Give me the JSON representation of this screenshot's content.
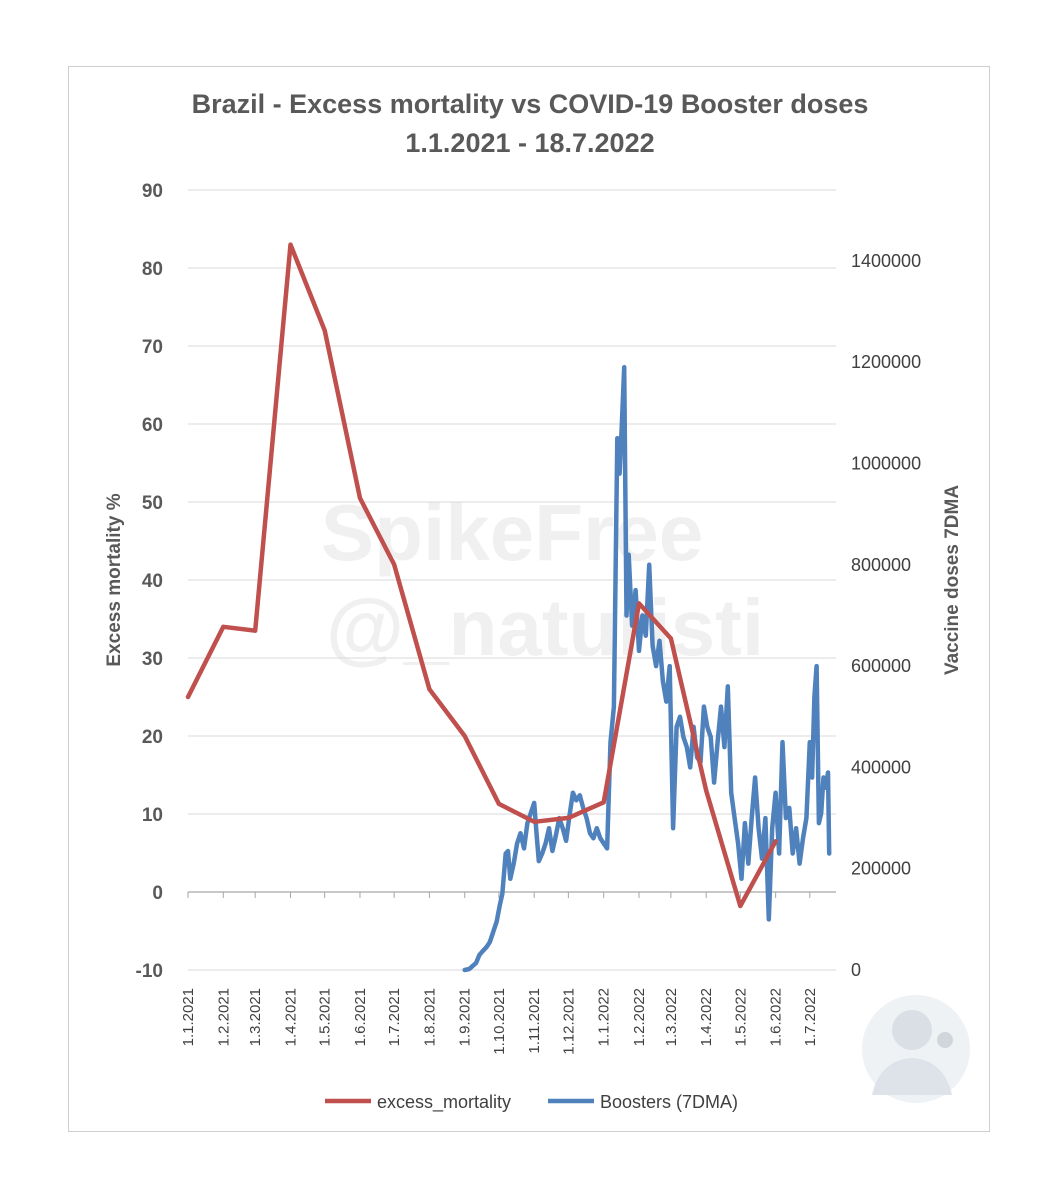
{
  "chart_data": {
    "type": "line",
    "title": "Brazil - Excess mortality vs COVID-19 Booster doses",
    "subtitle": "1.1.2021 - 18.7.2022",
    "ylabel": "Excess mortality %",
    "y2label": "Vaccine doses 7DMA",
    "ylim": [
      -10,
      90
    ],
    "y2lim": [
      0,
      1540000
    ],
    "y_ticks": [
      "-10",
      "0",
      "10",
      "20",
      "30",
      "40",
      "50",
      "60",
      "70",
      "80",
      "90"
    ],
    "y2_ticks": [
      "0",
      "200000",
      "400000",
      "600000",
      "800000",
      "1000000",
      "1200000",
      "1400000"
    ],
    "x_ticks": [
      "1.1.2021",
      "1.2.2021",
      "1.3.2021",
      "1.4.2021",
      "1.5.2021",
      "1.6.2021",
      "1.7.2021",
      "1.8.2021",
      "1.9.2021",
      "1.10.2021",
      "1.11.2021",
      "1.12.2021",
      "1.1.2022",
      "1.2.2022",
      "1.3.2022",
      "1.4.2022",
      "1.5.2022",
      "1.6.2022",
      "1.7.2022"
    ],
    "grid": true,
    "legend_position": "bottom",
    "series": [
      {
        "name": "excess_mortality",
        "axis": "left",
        "color": "#c0504d",
        "points": [
          [
            "2021-01-01",
            25
          ],
          [
            "2021-02-01",
            34
          ],
          [
            "2021-03-01",
            33.5
          ],
          [
            "2021-04-01",
            83
          ],
          [
            "2021-05-01",
            72
          ],
          [
            "2021-06-01",
            50.5
          ],
          [
            "2021-07-01",
            42
          ],
          [
            "2021-08-01",
            26
          ],
          [
            "2021-09-01",
            20
          ],
          [
            "2021-10-01",
            11.3
          ],
          [
            "2021-11-01",
            9
          ],
          [
            "2021-12-01",
            9.5
          ],
          [
            "2022-01-01",
            11.5
          ],
          [
            "2022-02-01",
            37
          ],
          [
            "2022-03-01",
            32.5
          ],
          [
            "2022-04-01",
            13
          ],
          [
            "2022-05-01",
            -1.8
          ],
          [
            "2022-06-01",
            6.5
          ]
        ]
      },
      {
        "name": "Boosters (7DMA)",
        "axis": "right",
        "color": "#4f81bd",
        "points": [
          [
            "2021-09-01",
            0
          ],
          [
            "2021-09-05",
            2000
          ],
          [
            "2021-09-08",
            8000
          ],
          [
            "2021-09-11",
            14000
          ],
          [
            "2021-09-14",
            30000
          ],
          [
            "2021-09-17",
            38000
          ],
          [
            "2021-09-20",
            45000
          ],
          [
            "2021-09-23",
            55000
          ],
          [
            "2021-09-26",
            75000
          ],
          [
            "2021-09-29",
            95000
          ],
          [
            "2021-10-02",
            130000
          ],
          [
            "2021-10-04",
            150000
          ],
          [
            "2021-10-07",
            230000
          ],
          [
            "2021-10-09",
            235000
          ],
          [
            "2021-10-11",
            180000
          ],
          [
            "2021-10-14",
            210000
          ],
          [
            "2021-10-17",
            250000
          ],
          [
            "2021-10-20",
            270000
          ],
          [
            "2021-10-23",
            240000
          ],
          [
            "2021-10-26",
            290000
          ],
          [
            "2021-10-29",
            310000
          ],
          [
            "2021-11-01",
            330000
          ],
          [
            "2021-11-03",
            270000
          ],
          [
            "2021-11-05",
            215000
          ],
          [
            "2021-11-08",
            230000
          ],
          [
            "2021-11-11",
            250000
          ],
          [
            "2021-11-14",
            280000
          ],
          [
            "2021-11-17",
            235000
          ],
          [
            "2021-11-20",
            265000
          ],
          [
            "2021-11-23",
            300000
          ],
          [
            "2021-11-26",
            280000
          ],
          [
            "2021-11-29",
            255000
          ],
          [
            "2021-12-02",
            305000
          ],
          [
            "2021-12-05",
            350000
          ],
          [
            "2021-12-08",
            335000
          ],
          [
            "2021-12-11",
            345000
          ],
          [
            "2021-12-14",
            320000
          ],
          [
            "2021-12-17",
            300000
          ],
          [
            "2021-12-20",
            270000
          ],
          [
            "2021-12-23",
            260000
          ],
          [
            "2021-12-26",
            280000
          ],
          [
            "2021-12-29",
            260000
          ],
          [
            "2022-01-01",
            250000
          ],
          [
            "2022-01-04",
            240000
          ],
          [
            "2022-01-07",
            450000
          ],
          [
            "2022-01-10",
            520000
          ],
          [
            "2022-01-13",
            1050000
          ],
          [
            "2022-01-15",
            980000
          ],
          [
            "2022-01-17",
            1080000
          ],
          [
            "2022-01-19",
            1190000
          ],
          [
            "2022-01-21",
            700000
          ],
          [
            "2022-01-23",
            820000
          ],
          [
            "2022-01-26",
            680000
          ],
          [
            "2022-01-29",
            750000
          ],
          [
            "2022-02-01",
            630000
          ],
          [
            "2022-02-04",
            700000
          ],
          [
            "2022-02-07",
            660000
          ],
          [
            "2022-02-10",
            800000
          ],
          [
            "2022-02-13",
            640000
          ],
          [
            "2022-02-16",
            600000
          ],
          [
            "2022-02-19",
            650000
          ],
          [
            "2022-02-22",
            570000
          ],
          [
            "2022-02-25",
            530000
          ],
          [
            "2022-02-28",
            600000
          ],
          [
            "2022-03-03",
            280000
          ],
          [
            "2022-03-06",
            480000
          ],
          [
            "2022-03-09",
            500000
          ],
          [
            "2022-03-12",
            460000
          ],
          [
            "2022-03-15",
            440000
          ],
          [
            "2022-03-18",
            400000
          ],
          [
            "2022-03-21",
            480000
          ],
          [
            "2022-03-24",
            420000
          ],
          [
            "2022-03-27",
            410000
          ],
          [
            "2022-03-30",
            520000
          ],
          [
            "2022-04-02",
            480000
          ],
          [
            "2022-04-05",
            460000
          ],
          [
            "2022-04-08",
            370000
          ],
          [
            "2022-04-11",
            450000
          ],
          [
            "2022-04-14",
            520000
          ],
          [
            "2022-04-17",
            440000
          ],
          [
            "2022-04-20",
            560000
          ],
          [
            "2022-04-23",
            350000
          ],
          [
            "2022-04-26",
            300000
          ],
          [
            "2022-04-29",
            250000
          ],
          [
            "2022-05-02",
            180000
          ],
          [
            "2022-05-05",
            290000
          ],
          [
            "2022-05-08",
            210000
          ],
          [
            "2022-05-11",
            300000
          ],
          [
            "2022-05-14",
            380000
          ],
          [
            "2022-05-17",
            280000
          ],
          [
            "2022-05-20",
            220000
          ],
          [
            "2022-05-23",
            300000
          ],
          [
            "2022-05-26",
            100000
          ],
          [
            "2022-05-29",
            280000
          ],
          [
            "2022-06-01",
            350000
          ],
          [
            "2022-06-04",
            230000
          ],
          [
            "2022-06-07",
            450000
          ],
          [
            "2022-06-10",
            300000
          ],
          [
            "2022-06-13",
            320000
          ],
          [
            "2022-06-16",
            230000
          ],
          [
            "2022-06-19",
            280000
          ],
          [
            "2022-06-22",
            210000
          ],
          [
            "2022-06-25",
            260000
          ],
          [
            "2022-06-28",
            300000
          ],
          [
            "2022-07-01",
            450000
          ],
          [
            "2022-07-03",
            380000
          ],
          [
            "2022-07-05",
            540000
          ],
          [
            "2022-07-07",
            600000
          ],
          [
            "2022-07-09",
            290000
          ],
          [
            "2022-07-11",
            310000
          ],
          [
            "2022-07-13",
            380000
          ],
          [
            "2022-07-15",
            360000
          ],
          [
            "2022-07-17",
            390000
          ],
          [
            "2022-07-18",
            230000
          ]
        ]
      }
    ]
  },
  "watermark": {
    "line1": "SpikeFree",
    "line2": "@_naturisti"
  }
}
